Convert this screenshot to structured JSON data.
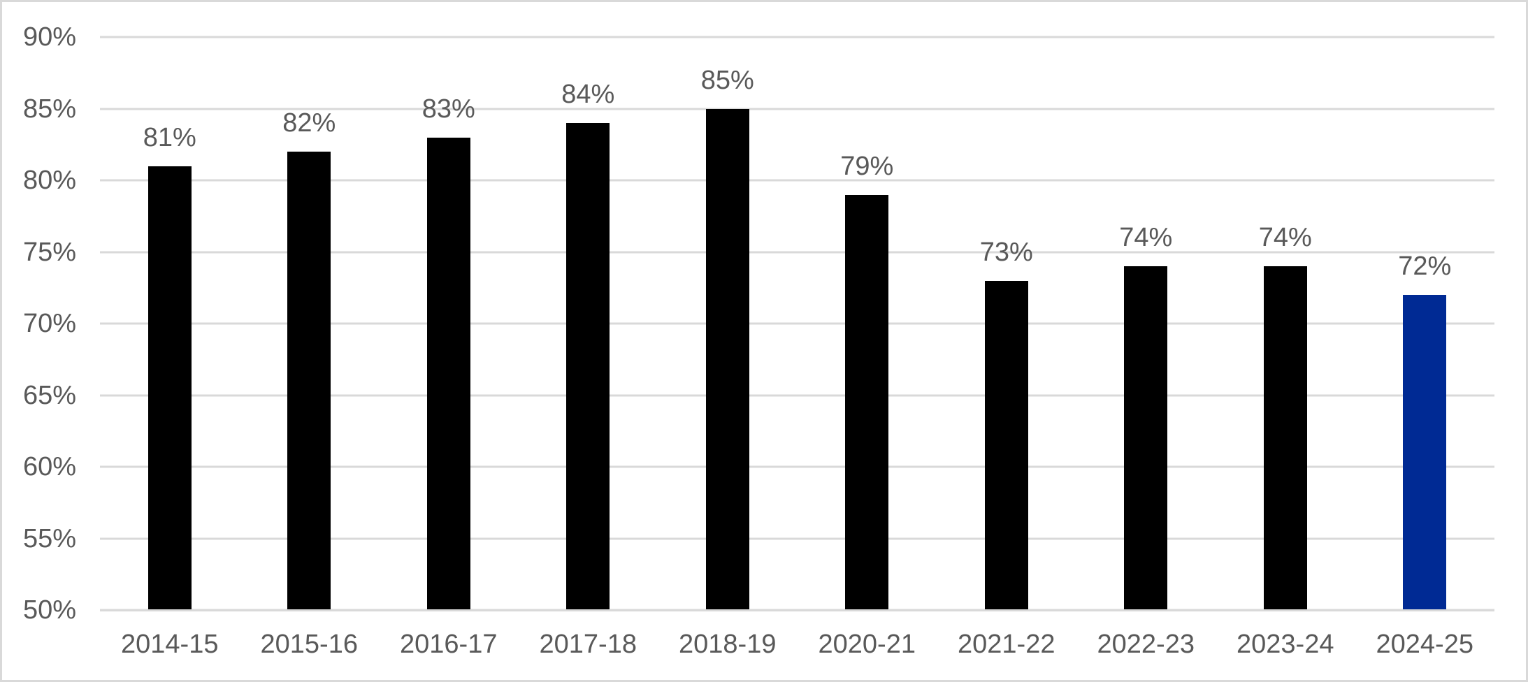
{
  "chart": {
    "background": "#ffffff",
    "border_color": "#d9d9d9",
    "gridline_color": "#d9d9d9",
    "axis_line_color": "#d9d9d9",
    "text_color": "#595959",
    "bar_color": "#000000",
    "highlight_color": "#002a94"
  },
  "chart_data": {
    "type": "bar",
    "title": "",
    "xlabel": "",
    "ylabel": "",
    "categories": [
      "2014-15",
      "2015-16",
      "2016-17",
      "2017-18",
      "2018-19",
      "2020-21",
      "2021-22",
      "2022-23",
      "2023-24",
      "2024-25"
    ],
    "values": [
      81,
      82,
      83,
      84,
      85,
      79,
      73,
      74,
      74,
      72
    ],
    "data_labels": [
      "81%",
      "82%",
      "83%",
      "84%",
      "85%",
      "79%",
      "73%",
      "74%",
      "74%",
      "72%"
    ],
    "highlight_index": 9,
    "ylim": [
      50,
      90
    ],
    "ytick_values": [
      50,
      55,
      60,
      65,
      70,
      75,
      80,
      85,
      90
    ],
    "ytick_labels": [
      "50%",
      "55%",
      "60%",
      "65%",
      "70%",
      "75%",
      "80%",
      "85%",
      "90%"
    ],
    "grid": true,
    "legend_position": "none"
  }
}
